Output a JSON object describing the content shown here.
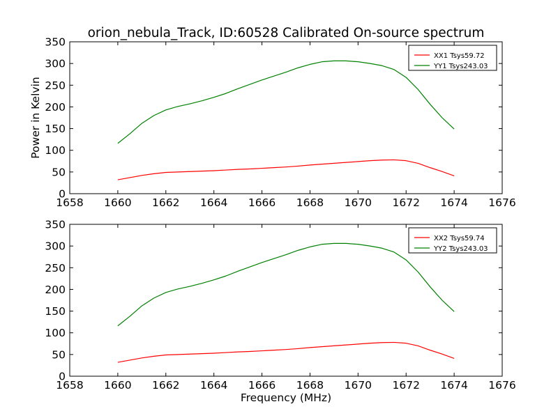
{
  "title": "orion_nebula_Track, ID:60528 Calibrated On-source spectrum",
  "chart_data": [
    {
      "type": "line",
      "title": "orion_nebula_Track, ID:60528 Calibrated On-source spectrum",
      "xlabel": "",
      "ylabel": "Power in Kelvin",
      "xlim": [
        1658,
        1676
      ],
      "ylim": [
        0,
        350
      ],
      "xticks": [
        "1658",
        "1660",
        "1662",
        "1664",
        "1666",
        "1668",
        "1670",
        "1672",
        "1674",
        "1676"
      ],
      "yticks": [
        "0",
        "50",
        "100",
        "150",
        "200",
        "250",
        "300",
        "350"
      ],
      "grid": false,
      "legend_position": "top-right",
      "series": [
        {
          "name": "XX1 Tsys59.72",
          "color": "#ff0000",
          "x": [
            1660,
            1660.5,
            1661,
            1661.5,
            1662,
            1662.5,
            1663,
            1663.5,
            1664,
            1664.5,
            1665,
            1665.5,
            1666,
            1666.5,
            1667,
            1667.5,
            1668,
            1668.5,
            1669,
            1669.5,
            1670,
            1670.5,
            1671,
            1671.5,
            1672,
            1672.5,
            1673,
            1673.5,
            1674
          ],
          "values": [
            32,
            37,
            42,
            46,
            49,
            50,
            51,
            52,
            53,
            54.5,
            56,
            57,
            58.5,
            60,
            61.5,
            63.5,
            66,
            68,
            70,
            72,
            74,
            76,
            77.5,
            78,
            76,
            70,
            60,
            51,
            41
          ]
        },
        {
          "name": "YY1 Tsys243.03",
          "color": "#008000",
          "x": [
            1660,
            1660.5,
            1661,
            1661.5,
            1662,
            1662.5,
            1663,
            1663.5,
            1664,
            1664.5,
            1665,
            1665.5,
            1666,
            1666.5,
            1667,
            1667.5,
            1668,
            1668.5,
            1669,
            1669.5,
            1670,
            1670.5,
            1671,
            1671.5,
            1672,
            1672.5,
            1673,
            1673.5,
            1674
          ],
          "values": [
            116,
            138,
            162,
            180,
            193,
            201,
            207,
            214,
            222,
            231,
            242,
            252,
            262,
            271,
            280,
            290,
            298,
            304,
            306,
            306,
            304,
            300,
            295,
            286,
            268,
            240,
            206,
            175,
            149
          ]
        }
      ]
    },
    {
      "type": "line",
      "title": "",
      "xlabel": "Frequency (MHz)",
      "ylabel": "",
      "xlim": [
        1658,
        1676
      ],
      "ylim": [
        0,
        350
      ],
      "xticks": [
        "1658",
        "1660",
        "1662",
        "1664",
        "1666",
        "1668",
        "1670",
        "1672",
        "1674",
        "1676"
      ],
      "yticks": [
        "0",
        "50",
        "100",
        "150",
        "200",
        "250",
        "300",
        "350"
      ],
      "grid": false,
      "legend_position": "top-right",
      "series": [
        {
          "name": "XX2 Tsys59.74",
          "color": "#ff0000",
          "x": [
            1660,
            1660.5,
            1661,
            1661.5,
            1662,
            1662.5,
            1663,
            1663.5,
            1664,
            1664.5,
            1665,
            1665.5,
            1666,
            1666.5,
            1667,
            1667.5,
            1668,
            1668.5,
            1669,
            1669.5,
            1670,
            1670.5,
            1671,
            1671.5,
            1672,
            1672.5,
            1673,
            1673.5,
            1674
          ],
          "values": [
            32,
            37,
            42,
            46,
            49,
            50,
            51,
            52,
            53,
            54.5,
            56,
            57,
            58.5,
            60,
            61.5,
            63.5,
            66,
            68,
            70,
            72,
            74,
            76,
            77.5,
            78,
            76,
            70,
            60,
            51,
            41
          ]
        },
        {
          "name": "YY2 Tsys243.03",
          "color": "#008000",
          "x": [
            1660,
            1660.5,
            1661,
            1661.5,
            1662,
            1662.5,
            1663,
            1663.5,
            1664,
            1664.5,
            1665,
            1665.5,
            1666,
            1666.5,
            1667,
            1667.5,
            1668,
            1668.5,
            1669,
            1669.5,
            1670,
            1670.5,
            1671,
            1671.5,
            1672,
            1672.5,
            1673,
            1673.5,
            1674
          ],
          "values": [
            116,
            138,
            162,
            180,
            193,
            201,
            207,
            214,
            222,
            231,
            242,
            252,
            262,
            271,
            280,
            290,
            298,
            304,
            306,
            306,
            304,
            300,
            295,
            286,
            268,
            240,
            206,
            175,
            149
          ]
        }
      ]
    }
  ]
}
